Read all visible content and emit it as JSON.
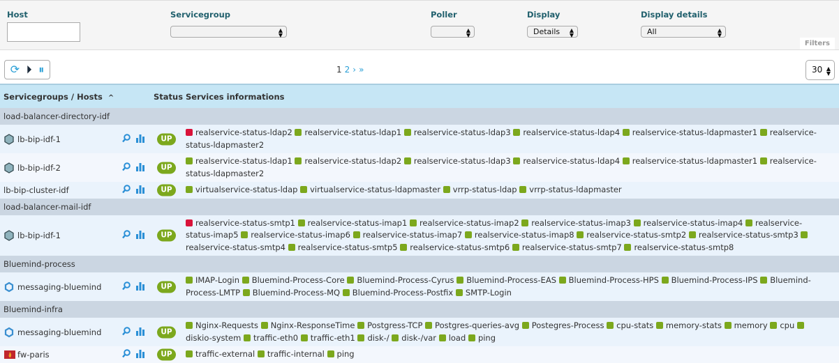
{
  "filters": {
    "host_label": "Host",
    "host_value": "",
    "servicegroup_label": "Servicegroup",
    "servicegroup_value": "",
    "poller_label": "Poller",
    "poller_value": "",
    "display_label": "Display",
    "display_value": "Details",
    "display_details_label": "Display details",
    "display_details_value": "All",
    "filters_tab": "Filters"
  },
  "pagination": {
    "current": "1",
    "next_page": "2",
    "next": "›",
    "last": "»"
  },
  "per_page": "30",
  "table": {
    "col_name": "Servicegroups / Hosts",
    "sort_icon": "^",
    "col_status": "Status",
    "col_services": "Services informations"
  },
  "colors": {
    "ok": "#7ca81d",
    "critical": "#d9133a",
    "header": "#c6e6f5",
    "group": "#cbd6e2"
  },
  "groups": [
    {
      "name": "load-balancer-directory-idf",
      "hosts": [
        {
          "name": "lb-bip-idf-1",
          "icon": "f5-icon",
          "status": "UP",
          "services": [
            [
              "realservice-status-ldap2",
              "critical"
            ],
            [
              "realservice-status-ldap1",
              "ok"
            ],
            [
              "realservice-status-ldap3",
              "ok"
            ],
            [
              "realservice-status-ldap4",
              "ok"
            ],
            [
              "realservice-status-ldapmaster1",
              "ok"
            ],
            [
              "realservice-status-ldapmaster2",
              "ok"
            ]
          ]
        },
        {
          "name": "lb-bip-idf-2",
          "icon": "f5-icon",
          "status": "UP",
          "services": [
            [
              "realservice-status-ldap1",
              "ok"
            ],
            [
              "realservice-status-ldap2",
              "ok"
            ],
            [
              "realservice-status-ldap3",
              "ok"
            ],
            [
              "realservice-status-ldap4",
              "ok"
            ],
            [
              "realservice-status-ldapmaster1",
              "ok"
            ],
            [
              "realservice-status-ldapmaster2",
              "ok"
            ]
          ]
        },
        {
          "name": "lb-bip-cluster-idf",
          "icon": "",
          "status": "UP",
          "services": [
            [
              "virtualservice-status-ldap",
              "ok"
            ],
            [
              "virtualservice-status-ldapmaster",
              "ok"
            ],
            [
              "vrrp-status-ldap",
              "ok"
            ],
            [
              "vrrp-status-ldapmaster",
              "ok"
            ]
          ]
        }
      ]
    },
    {
      "name": "load-balancer-mail-idf",
      "hosts": [
        {
          "name": "lb-bip-idf-1",
          "icon": "f5-icon",
          "status": "UP",
          "services": [
            [
              "realservice-status-smtp1",
              "critical"
            ],
            [
              "realservice-status-imap1",
              "ok"
            ],
            [
              "realservice-status-imap2",
              "ok"
            ],
            [
              "realservice-status-imap3",
              "ok"
            ],
            [
              "realservice-status-imap4",
              "ok"
            ],
            [
              "realservice-status-imap5",
              "ok"
            ],
            [
              "realservice-status-imap6",
              "ok"
            ],
            [
              "realservice-status-imap7",
              "ok"
            ],
            [
              "realservice-status-imap8",
              "ok"
            ],
            [
              "realservice-status-smtp2",
              "ok"
            ],
            [
              "realservice-status-smtp3",
              "ok"
            ],
            [
              "realservice-status-smtp4",
              "ok"
            ],
            [
              "realservice-status-smtp5",
              "ok"
            ],
            [
              "realservice-status-smtp6",
              "ok"
            ],
            [
              "realservice-status-smtp7",
              "ok"
            ],
            [
              "realservice-status-smtp8",
              "ok"
            ]
          ]
        }
      ]
    },
    {
      "name": "Bluemind-process",
      "hosts": [
        {
          "name": "messaging-bluemind",
          "icon": "bluemind-icon",
          "status": "UP",
          "services": [
            [
              "IMAP-Login",
              "ok"
            ],
            [
              "Bluemind-Process-Core",
              "ok"
            ],
            [
              "Bluemind-Process-Cyrus",
              "ok"
            ],
            [
              "Bluemind-Process-EAS",
              "ok"
            ],
            [
              "Bluemind-Process-HPS",
              "ok"
            ],
            [
              "Bluemind-Process-IPS",
              "ok"
            ],
            [
              "Bluemind-Process-LMTP",
              "ok"
            ],
            [
              "Bluemind-Process-MQ",
              "ok"
            ],
            [
              "Bluemind-Process-Postfix",
              "ok"
            ],
            [
              "SMTP-Login",
              "ok"
            ]
          ]
        }
      ]
    },
    {
      "name": "Bluemind-infra",
      "hosts": [
        {
          "name": "messaging-bluemind",
          "icon": "bluemind-icon",
          "status": "UP",
          "services": [
            [
              "Nginx-Requests",
              "ok"
            ],
            [
              "Nginx-ResponseTime",
              "ok"
            ],
            [
              "Postgress-TCP",
              "ok"
            ],
            [
              "Postgres-queries-avg",
              "ok"
            ],
            [
              "Postegres-Process",
              "ok"
            ],
            [
              "cpu-stats",
              "ok"
            ],
            [
              "memory-stats",
              "ok"
            ],
            [
              "memory",
              "ok"
            ],
            [
              "cpu",
              "ok"
            ],
            [
              "diskio-system",
              "ok"
            ],
            [
              "traffic-eth0",
              "ok"
            ],
            [
              "traffic-eth1",
              "ok"
            ],
            [
              "disk-/",
              "ok"
            ],
            [
              "disk-/var",
              "ok"
            ],
            [
              "load",
              "ok"
            ],
            [
              "ping",
              "ok"
            ]
          ]
        },
        {
          "name": "fw-paris",
          "icon": "firewall-icon",
          "status": "UP",
          "services": [
            [
              "traffic-external",
              "ok"
            ],
            [
              "traffic-internal",
              "ok"
            ],
            [
              "ping",
              "ok"
            ]
          ]
        }
      ]
    }
  ]
}
